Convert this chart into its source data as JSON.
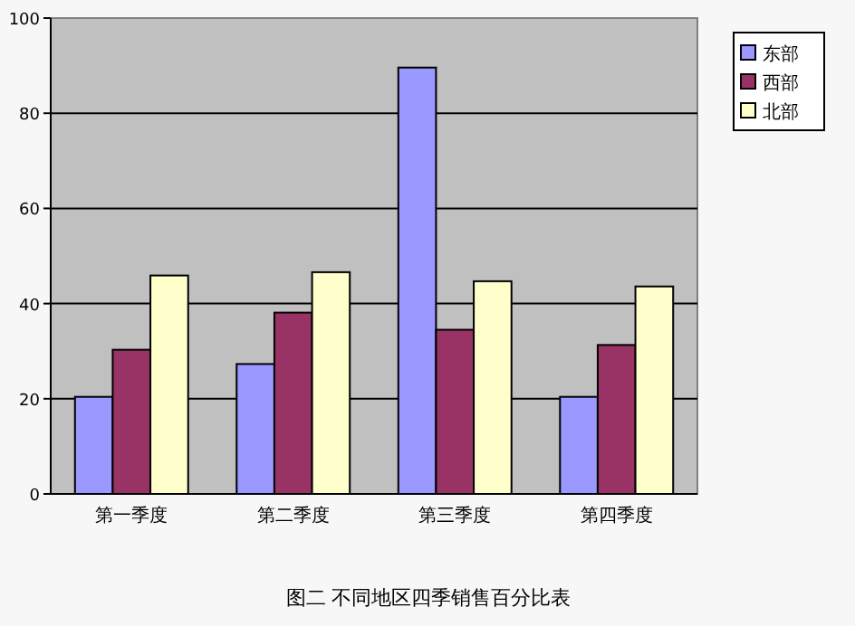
{
  "chart_data": {
    "type": "bar",
    "title": "图二  不同地区四季销售百分比表",
    "categories": [
      "第一季度",
      "第二季度",
      "第三季度",
      "第四季度"
    ],
    "series": [
      {
        "name": "东部",
        "color": "#9999ff",
        "values": [
          20.4,
          27.3,
          89.6,
          20.4
        ]
      },
      {
        "name": "西部",
        "color": "#993366",
        "values": [
          30.3,
          38.1,
          34.5,
          31.3
        ]
      },
      {
        "name": "北部",
        "color": "#ffffcc",
        "values": [
          45.9,
          46.6,
          44.7,
          43.6
        ]
      }
    ],
    "ylim": [
      0,
      100
    ],
    "yticks": [
      0,
      20,
      40,
      60,
      80,
      100
    ],
    "grid": "y",
    "legend": "right"
  }
}
